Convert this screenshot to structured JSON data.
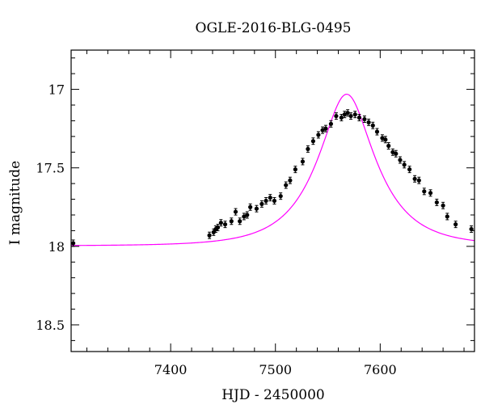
{
  "chart_data": {
    "type": "scatter",
    "title": "OGLE-2016-BLG-0495",
    "xlabel": "HJD - 2450000",
    "ylabel": "I magnitude",
    "xlim": [
      7305,
      7690
    ],
    "ylim": [
      18.67,
      16.75
    ],
    "y_inverted": true,
    "x_major_ticks": [
      7400,
      7500,
      7600
    ],
    "x_minor_step": 20,
    "y_major_ticks": [
      17,
      17.5,
      18,
      18.5
    ],
    "y_minor_step": 0.1,
    "grid": false,
    "point_color": "#000000",
    "model_color": "#ff00ff",
    "model": {
      "t0": 7568,
      "tE": 50,
      "u0": 0.44,
      "base_mag": 17.997
    },
    "series": [
      {
        "x": [
          7307,
          7437,
          7441,
          7443,
          7445,
          7448,
          7452,
          7458,
          7462,
          7466,
          7470,
          7473,
          7476,
          7482,
          7487,
          7491,
          7495,
          7499,
          7505,
          7510,
          7514,
          7519,
          7526,
          7531,
          7536,
          7541,
          7545,
          7548,
          7553,
          7558,
          7563,
          7566,
          7569,
          7572,
          7576,
          7580,
          7585,
          7589,
          7593,
          7597,
          7602,
          7605,
          7608,
          7612,
          7615,
          7619,
          7623,
          7628,
          7633,
          7637,
          7642,
          7648,
          7654,
          7660,
          7664,
          7672,
          7687
        ],
        "y": [
          17.98,
          17.93,
          17.91,
          17.89,
          17.88,
          17.85,
          17.86,
          17.84,
          17.78,
          17.84,
          17.81,
          17.8,
          17.75,
          17.76,
          17.73,
          17.71,
          17.69,
          17.71,
          17.68,
          17.61,
          17.58,
          17.51,
          17.46,
          17.38,
          17.33,
          17.29,
          17.26,
          17.25,
          17.22,
          17.17,
          17.18,
          17.16,
          17.15,
          17.17,
          17.16,
          17.18,
          17.19,
          17.21,
          17.23,
          17.27,
          17.31,
          17.32,
          17.36,
          17.4,
          17.41,
          17.45,
          17.48,
          17.51,
          17.57,
          17.58,
          17.65,
          17.66,
          17.72,
          17.74,
          17.81,
          17.86,
          17.89
        ]
      }
    ]
  }
}
